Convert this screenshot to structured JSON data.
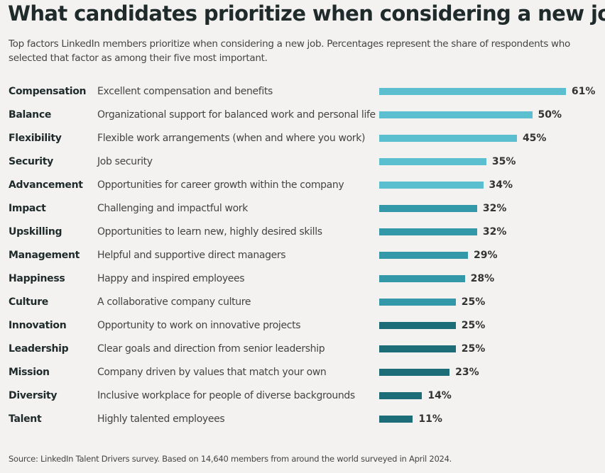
{
  "chart_data": {
    "type": "bar",
    "orientation": "horizontal",
    "title": "What candidates prioritize when considering a new job",
    "subtitle": "Top factors LinkedIn members prioritize when considering a new job. Percentages represent the share of respondents who selected that factor as among their five most important.",
    "source": "Source: LinkedIn Talent Drivers survey. Based on 14,640 members from around the world surveyed in April 2024.",
    "unit": "%",
    "categories": [
      "Compensation",
      "Balance",
      "Flexibility",
      "Security",
      "Advancement",
      "Impact",
      "Upskilling",
      "Management",
      "Happiness",
      "Culture",
      "Innovation",
      "Leadership",
      "Mission",
      "Diversity",
      "Talent"
    ],
    "descriptions": [
      "Excellent compensation and benefits",
      "Organizational support for balanced work and personal life",
      "Flexible work arrangements (when and where you work)",
      "Job security",
      "Opportunities for career growth within the company",
      "Challenging and impactful work",
      "Opportunities to learn new, highly desired skills",
      "Helpful and supportive direct managers",
      "Happy and inspired employees",
      "A collaborative company culture",
      "Opportunity to work on innovative projects",
      "Clear goals and direction from senior leadership",
      "Company driven by values that match your own",
      "Inclusive workplace for people of diverse backgrounds",
      "Highly talented employees"
    ],
    "values": [
      61,
      50,
      45,
      35,
      34,
      32,
      32,
      29,
      28,
      25,
      25,
      25,
      23,
      14,
      11
    ],
    "labels": [
      "61%",
      "50%",
      "45%",
      "35%",
      "34%",
      "32%",
      "32%",
      "29%",
      "28%",
      "25%",
      "25%",
      "25%",
      "23%",
      "14%",
      "11%"
    ],
    "bar_colors": [
      "#5bbfcf",
      "#5bbfcf",
      "#5bbfcf",
      "#5bbfcf",
      "#5bbfcf",
      "#3399a8",
      "#3399a8",
      "#3399a8",
      "#3399a8",
      "#3399a8",
      "#1d6d78",
      "#1d6d78",
      "#1d6d78",
      "#1d6d78",
      "#1d6d78"
    ],
    "grid": false,
    "legend": "none"
  }
}
